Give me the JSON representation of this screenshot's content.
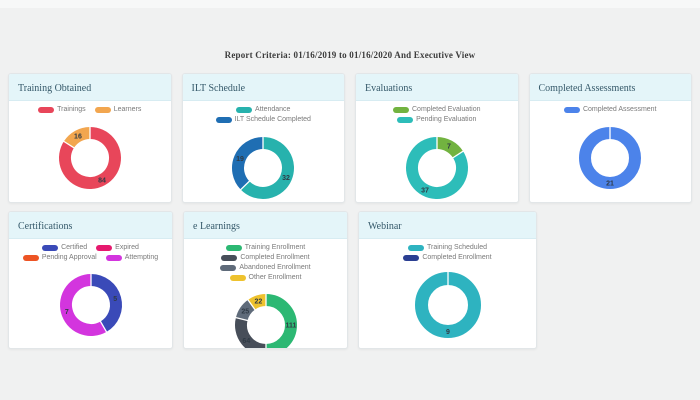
{
  "page": {
    "report_criteria": "Report Criteria: 01/16/2019 to 01/16/2020 And Executive View"
  },
  "theme": {
    "page_background": "#f0f1f1",
    "card_header_background": "#e4f5f9",
    "card_title_color": "#35596a",
    "legend_text_color": "#7a7a7a",
    "slice_label_color": "#2f3a45"
  },
  "chart_data": [
    {
      "type": "donut",
      "title": "Training Obtained",
      "legend_position": "top",
      "series": [
        {
          "name": "Trainings",
          "value": 84,
          "color": "#e8465a"
        },
        {
          "name": "Learners",
          "value": 16,
          "color": "#f2a64f"
        }
      ]
    },
    {
      "type": "donut",
      "title": "ILT Schedule",
      "legend_position": "top",
      "series": [
        {
          "name": "Attendance",
          "value": 32,
          "color": "#27b2ad"
        },
        {
          "name": "ILT Schedule Completed",
          "value": 19,
          "color": "#1f6eb3"
        }
      ]
    },
    {
      "type": "donut",
      "title": "Evaluations",
      "legend_position": "top",
      "series": [
        {
          "name": "Completed Evaluation",
          "value": 7,
          "color": "#72b340"
        },
        {
          "name": "Pending Evaluation",
          "value": 37,
          "color": "#2dbdb9"
        }
      ]
    },
    {
      "type": "donut",
      "title": "Completed Assessments",
      "legend_position": "top",
      "series": [
        {
          "name": "Completed Assessment",
          "value": 21,
          "color": "#4c83ea"
        }
      ]
    },
    {
      "type": "donut",
      "title": "Certifications",
      "legend_position": "top",
      "series": [
        {
          "name": "Certified",
          "value": 5,
          "color": "#3a4ab8"
        },
        {
          "name": "Expired",
          "value": 0,
          "color": "#e6196e"
        },
        {
          "name": "Pending Approval",
          "value": 0,
          "color": "#ed5424"
        },
        {
          "name": "Attempting",
          "value": 7,
          "color": "#d335de"
        }
      ]
    },
    {
      "type": "donut",
      "title": "e Learnings",
      "legend_position": "top",
      "series": [
        {
          "name": "Training Enrollment",
          "value": 111,
          "color": "#2cb873"
        },
        {
          "name": "Completed Enrollment",
          "value": 64,
          "color": "#474e59"
        },
        {
          "name": "Abandoned Enrollment",
          "value": 25,
          "color": "#5f6b7a"
        },
        {
          "name": "Other Enrollment",
          "value": 22,
          "color": "#eec22e"
        }
      ]
    },
    {
      "type": "donut",
      "title": "Webinar",
      "legend_position": "top",
      "series": [
        {
          "name": "Training Scheduled",
          "value": 9,
          "color": "#2eb3c0"
        },
        {
          "name": "Completed Enrollment",
          "value": 0,
          "color": "#2b3f92"
        }
      ]
    }
  ]
}
